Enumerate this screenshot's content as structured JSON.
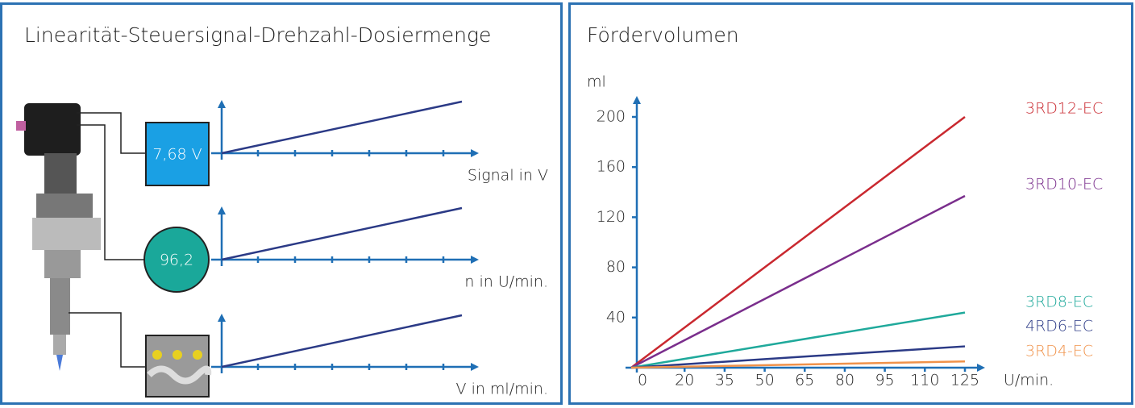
{
  "diagram": {
    "title": "Linearität-Steuersignal-Drehzahl-Dosiermenge",
    "signal_display": "7,68 V",
    "speed_display": "96,2",
    "axis_labels": [
      "Signal in V",
      "n in U/min.",
      "V in ml/min."
    ]
  },
  "chart_data": {
    "type": "line",
    "title": "Fördervolumen",
    "y_label": "ml",
    "x_label": "U/min.",
    "xlim": [
      0,
      125
    ],
    "xticks": [
      0,
      20,
      35,
      50,
      65,
      80,
      95,
      110,
      125
    ],
    "ylim": [
      0,
      200
    ],
    "yticks": [
      40,
      80,
      120,
      160,
      200
    ],
    "series": [
      {
        "name": "3RD12-EC",
        "color": "#c9282f",
        "x": [
          0,
          125
        ],
        "values": [
          0,
          200
        ]
      },
      {
        "name": "3RD10-EC",
        "color": "#7a2e8c",
        "x": [
          0,
          125
        ],
        "values": [
          0,
          137
        ]
      },
      {
        "name": "3RD8-EC",
        "color": "#1fa99b",
        "x": [
          0,
          125
        ],
        "values": [
          0,
          44
        ]
      },
      {
        "name": "4RD6-EC",
        "color": "#2b3a86",
        "x": [
          0,
          125
        ],
        "values": [
          0,
          17
        ]
      },
      {
        "name": "3RD4-EC",
        "color": "#f0924a",
        "x": [
          0,
          125
        ],
        "values": [
          0,
          5
        ]
      }
    ]
  }
}
